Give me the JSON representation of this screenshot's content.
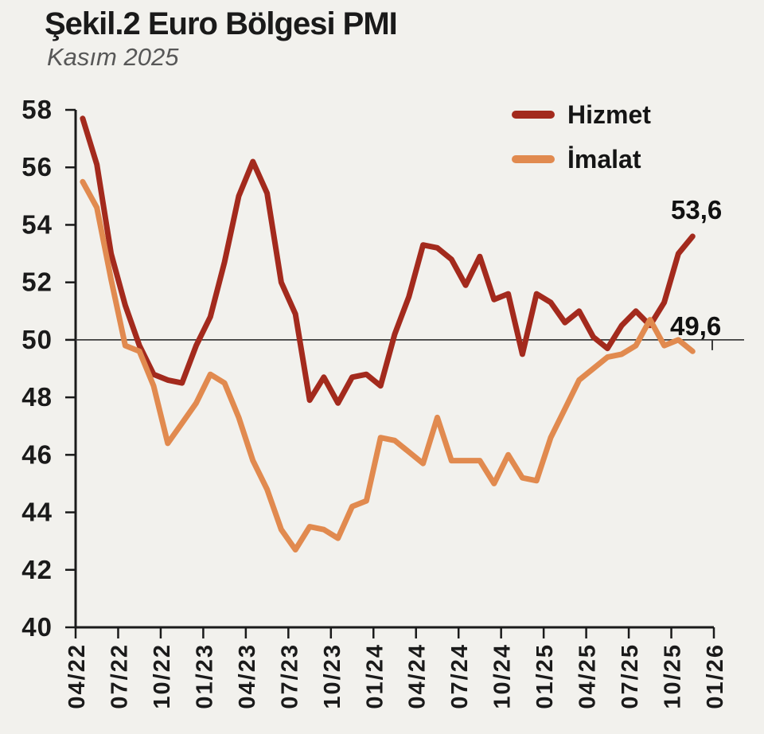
{
  "title": "Şekil.2 Euro Bölgesi PMI",
  "subtitle": "Kasım 2025",
  "colors": {
    "hizmet": "#A32A1D",
    "imalat": "#E18A4F",
    "background": "#F2F1ED",
    "axis": "#1a1a1a",
    "reference_line": "#3c3c3c"
  },
  "legend": [
    {
      "label": "Hizmet",
      "color": "#A32A1D"
    },
    {
      "label": "İmalat",
      "color": "#E18A4F"
    }
  ],
  "annotations": {
    "hizmet_end": "53,6",
    "imalat_end": "49,6"
  },
  "chart_data": {
    "type": "line",
    "title": "Şekil.2 Euro Bölgesi PMI",
    "subtitle": "Kasım 2025",
    "frequency": "monthly",
    "period_start_label": "04/22",
    "period_end_label": "11/25",
    "x_tick_labels": [
      "04/22",
      "07/22",
      "10/22",
      "01/23",
      "04/23",
      "07/23",
      "10/23",
      "01/24",
      "04/24",
      "07/24",
      "10/24",
      "01/25",
      "04/25",
      "07/25",
      "10/25",
      "01/26"
    ],
    "y_ticks": [
      58,
      56,
      54,
      52,
      50,
      48,
      46,
      44,
      42,
      40
    ],
    "ylim": [
      40,
      58
    ],
    "reference_line": 50,
    "grid": false,
    "legend_position": "top-right",
    "series": [
      {
        "name": "Hizmet",
        "color": "#A32A1D",
        "end_label": "53,6",
        "values": [
          57.7,
          56.1,
          53.0,
          51.2,
          49.8,
          48.8,
          48.6,
          48.5,
          49.8,
          50.8,
          52.7,
          55.0,
          56.2,
          55.1,
          52.0,
          50.9,
          47.9,
          48.7,
          47.8,
          48.7,
          48.8,
          48.4,
          50.2,
          51.5,
          53.3,
          53.2,
          52.8,
          51.9,
          52.9,
          51.4,
          51.6,
          49.5,
          51.6,
          51.3,
          50.6,
          51.0,
          50.1,
          49.7,
          50.5,
          51.0,
          50.5,
          51.3,
          53.0,
          53.6
        ]
      },
      {
        "name": "İmalat",
        "color": "#E18A4F",
        "end_label": "49,6",
        "values": [
          55.5,
          54.6,
          52.1,
          49.8,
          49.6,
          48.4,
          46.4,
          47.1,
          47.8,
          48.8,
          48.5,
          47.3,
          45.8,
          44.8,
          43.4,
          42.7,
          43.5,
          43.4,
          43.1,
          44.2,
          44.4,
          46.6,
          46.5,
          46.1,
          45.7,
          47.3,
          45.8,
          45.8,
          45.8,
          45.0,
          46.0,
          45.2,
          45.1,
          46.6,
          47.6,
          48.6,
          49.0,
          49.4,
          49.5,
          49.8,
          50.7,
          49.8,
          50.0,
          49.6
        ]
      }
    ]
  }
}
